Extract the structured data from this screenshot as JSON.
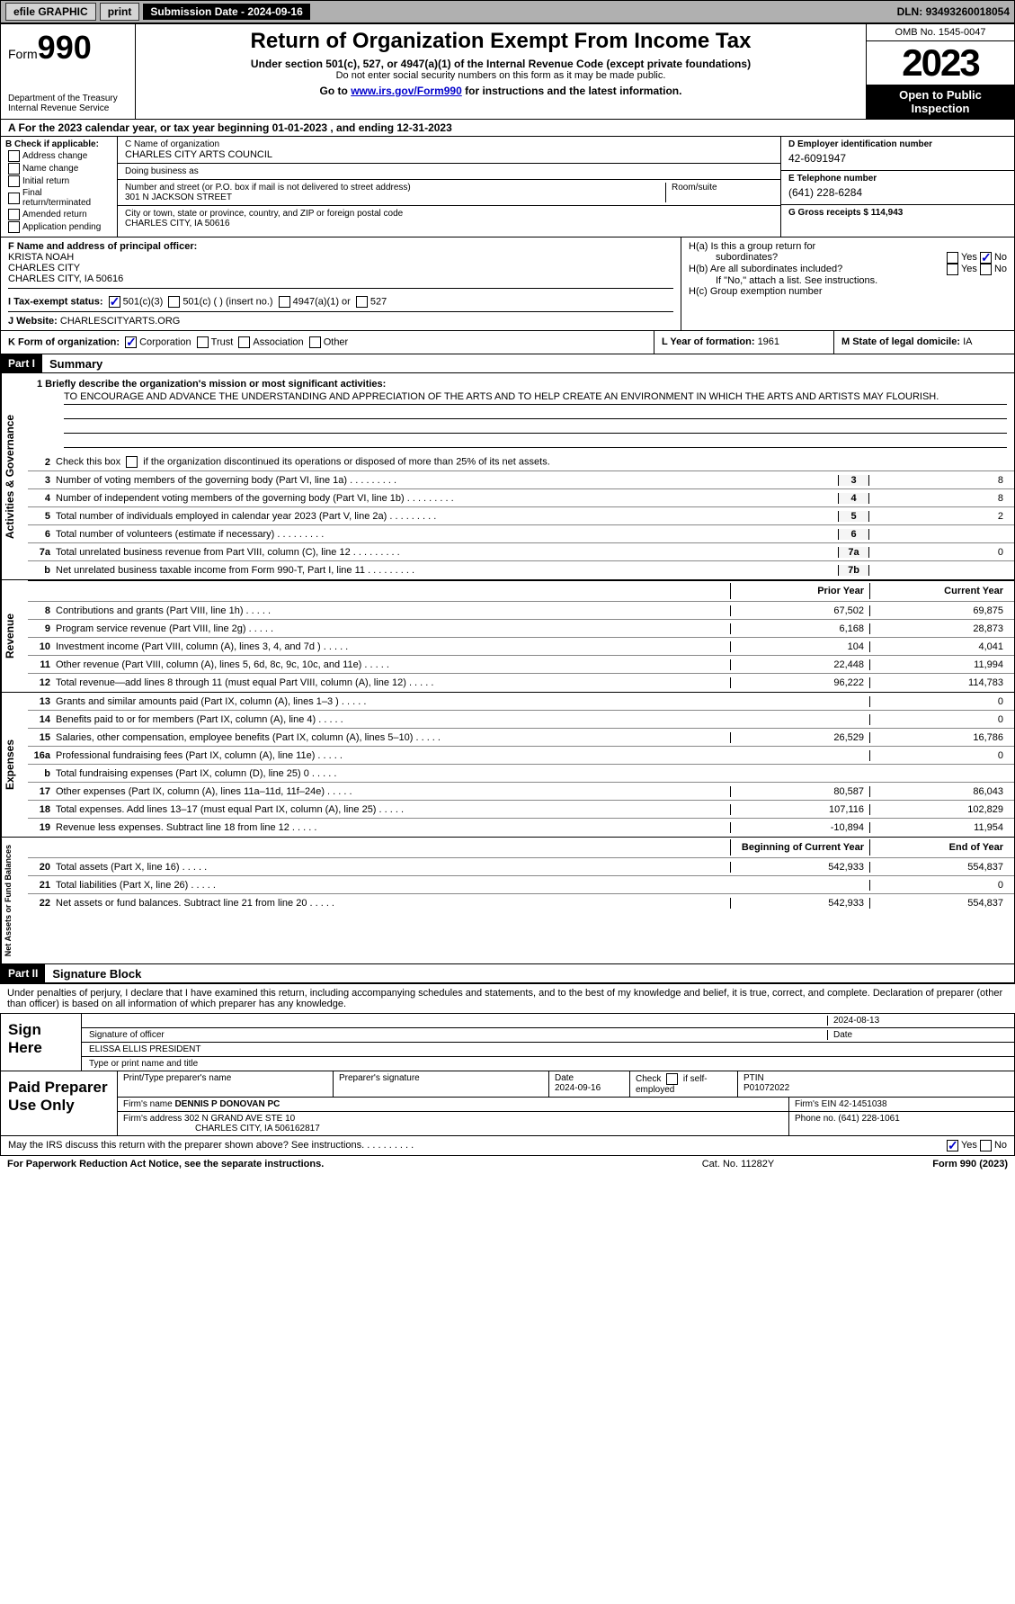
{
  "topbar": {
    "efile": "efile GRAPHIC",
    "print": "print",
    "subdate_label": "Submission Date - ",
    "subdate": "2024-09-16",
    "dln_label": "DLN: ",
    "dln": "93493260018054"
  },
  "header": {
    "form_label": "Form",
    "form_num": "990",
    "dept": "Department of the Treasury",
    "irs": "Internal Revenue Service",
    "title": "Return of Organization Exempt From Income Tax",
    "sub1": "Under section 501(c), 527, or 4947(a)(1) of the Internal Revenue Code (except private foundations)",
    "sub2": "Do not enter social security numbers on this form as it may be made public.",
    "sub3_pre": "Go to ",
    "sub3_link": "www.irs.gov/Form990",
    "sub3_post": " for instructions and the latest information.",
    "omb": "OMB No. 1545-0047",
    "year": "2023",
    "inspect1": "Open to Public",
    "inspect2": "Inspection"
  },
  "lineA": "A   For the 2023 calendar year, or tax year beginning 01-01-2023    , and ending 12-31-2023",
  "boxB": {
    "label": "B Check if applicable:",
    "items": [
      "Address change",
      "Name change",
      "Initial return",
      "Final return/terminated",
      "Amended return",
      "Application pending"
    ]
  },
  "boxC": {
    "name_label": "C Name of organization",
    "name": "CHARLES CITY ARTS COUNCIL",
    "dba_label": "Doing business as",
    "dba": "",
    "street_label": "Number and street (or P.O. box if mail is not delivered to street address)",
    "street": "301 N JACKSON STREET",
    "room_label": "Room/suite",
    "room": "",
    "city_label": "City or town, state or province, country, and ZIP or foreign postal code",
    "city": "CHARLES CITY, IA  50616"
  },
  "boxD": {
    "label": "D Employer identification number",
    "val": "42-6091947"
  },
  "boxE": {
    "label": "E Telephone number",
    "val": "(641) 228-6284"
  },
  "boxG": {
    "label": "G Gross receipts $ ",
    "val": "114,943"
  },
  "boxF": {
    "label": "F  Name and address of principal officer:",
    "name": "KRISTA NOAH",
    "org": "CHARLES CITY",
    "addr": "CHARLES CITY, IA  50616"
  },
  "boxI": {
    "label": "I     Tax-exempt status:",
    "opt1": "501(c)(3)",
    "opt2": "501(c) (  ) (insert no.)",
    "opt3": "4947(a)(1) or",
    "opt4": "527"
  },
  "boxJ": {
    "label": "J     Website: ",
    "val": "CHARLESCITYARTS.ORG"
  },
  "boxH": {
    "a": "H(a)  Is this a group return for",
    "a2": "subordinates?",
    "b": "H(b)  Are all subordinates included?",
    "b2": "If \"No,\" attach a list. See instructions.",
    "c": "H(c)  Group exemption number ",
    "yes": "Yes",
    "no": "No"
  },
  "boxK": {
    "label": "K Form of organization:",
    "opts": [
      "Corporation",
      "Trust",
      "Association",
      "Other"
    ]
  },
  "boxL": {
    "label": "L Year of formation: ",
    "val": "1961"
  },
  "boxM": {
    "label": "M State of legal domicile: ",
    "val": "IA"
  },
  "part1": {
    "hdr": "Part I",
    "title": "Summary"
  },
  "gov": {
    "label": "Activities & Governance",
    "l1_label": "1   Briefly describe the organization's mission or most significant activities:",
    "l1_text": "TO ENCOURAGE AND ADVANCE THE UNDERSTANDING AND APPRECIATION OF THE ARTS AND TO HELP CREATE AN ENVIRONMENT IN WHICH THE ARTS AND ARTISTS MAY FLOURISH.",
    "l2": "Check this box      if the organization discontinued its operations or disposed of more than 25% of its net assets.",
    "lines": [
      {
        "n": "3",
        "t": "Number of voting members of the governing body (Part VI, line 1a)",
        "cn": "3",
        "v": "8"
      },
      {
        "n": "4",
        "t": "Number of independent voting members of the governing body (Part VI, line 1b)",
        "cn": "4",
        "v": "8"
      },
      {
        "n": "5",
        "t": "Total number of individuals employed in calendar year 2023 (Part V, line 2a)",
        "cn": "5",
        "v": "2"
      },
      {
        "n": "6",
        "t": "Total number of volunteers (estimate if necessary)",
        "cn": "6",
        "v": ""
      },
      {
        "n": "7a",
        "t": "Total unrelated business revenue from Part VIII, column (C), line 12",
        "cn": "7a",
        "v": "0"
      },
      {
        "n": "b",
        "t": "Net unrelated business taxable income from Form 990-T, Part I, line 11",
        "cn": "7b",
        "v": ""
      }
    ]
  },
  "rev": {
    "label": "Revenue",
    "hdr1": "Prior Year",
    "hdr2": "Current Year",
    "lines": [
      {
        "n": "8",
        "t": "Contributions and grants (Part VIII, line 1h)",
        "c1": "67,502",
        "c2": "69,875"
      },
      {
        "n": "9",
        "t": "Program service revenue (Part VIII, line 2g)",
        "c1": "6,168",
        "c2": "28,873"
      },
      {
        "n": "10",
        "t": "Investment income (Part VIII, column (A), lines 3, 4, and 7d )",
        "c1": "104",
        "c2": "4,041"
      },
      {
        "n": "11",
        "t": "Other revenue (Part VIII, column (A), lines 5, 6d, 8c, 9c, 10c, and 11e)",
        "c1": "22,448",
        "c2": "11,994"
      },
      {
        "n": "12",
        "t": "Total revenue—add lines 8 through 11 (must equal Part VIII, column (A), line 12)",
        "c1": "96,222",
        "c2": "114,783"
      }
    ]
  },
  "exp": {
    "label": "Expenses",
    "lines": [
      {
        "n": "13",
        "t": "Grants and similar amounts paid (Part IX, column (A), lines 1–3 )",
        "c1": "",
        "c2": "0"
      },
      {
        "n": "14",
        "t": "Benefits paid to or for members (Part IX, column (A), line 4)",
        "c1": "",
        "c2": "0"
      },
      {
        "n": "15",
        "t": "Salaries, other compensation, employee benefits (Part IX, column (A), lines 5–10)",
        "c1": "26,529",
        "c2": "16,786"
      },
      {
        "n": "16a",
        "t": "Professional fundraising fees (Part IX, column (A), line 11e)",
        "c1": "",
        "c2": "0"
      },
      {
        "n": "b",
        "t": "Total fundraising expenses (Part IX, column (D), line 25) 0",
        "c1": "grey",
        "c2": "grey"
      },
      {
        "n": "17",
        "t": "Other expenses (Part IX, column (A), lines 11a–11d, 11f–24e)",
        "c1": "80,587",
        "c2": "86,043"
      },
      {
        "n": "18",
        "t": "Total expenses. Add lines 13–17 (must equal Part IX, column (A), line 25)",
        "c1": "107,116",
        "c2": "102,829"
      },
      {
        "n": "19",
        "t": "Revenue less expenses. Subtract line 18 from line 12",
        "c1": "-10,894",
        "c2": "11,954"
      }
    ]
  },
  "net": {
    "label": "Net Assets or Fund Balances",
    "hdr1": "Beginning of Current Year",
    "hdr2": "End of Year",
    "lines": [
      {
        "n": "20",
        "t": "Total assets (Part X, line 16)",
        "c1": "542,933",
        "c2": "554,837"
      },
      {
        "n": "21",
        "t": "Total liabilities (Part X, line 26)",
        "c1": "",
        "c2": "0"
      },
      {
        "n": "22",
        "t": "Net assets or fund balances. Subtract line 21 from line 20",
        "c1": "542,933",
        "c2": "554,837"
      }
    ]
  },
  "part2": {
    "hdr": "Part II",
    "title": "Signature Block"
  },
  "sigtext": "Under penalties of perjury, I declare that I have examined this return, including accompanying schedules and statements, and to the best of my knowledge and belief, it is true, correct, and complete. Declaration of preparer (other than officer) is based on all information of which preparer has any knowledge.",
  "sign": {
    "label": "Sign Here",
    "sig_label": "Signature of officer",
    "date": "2024-08-13",
    "date_label": "Date",
    "name": "ELISSA ELLIS PRESIDENT",
    "name_label": "Type or print name and title"
  },
  "prep": {
    "label": "Paid Preparer Use Only",
    "h1": "Print/Type preparer's name",
    "h2": "Preparer's signature",
    "h3_label": "Date",
    "h3": "2024-09-16",
    "h4": "Check       if self-employed",
    "h5_label": "PTIN",
    "h5": "P01072022",
    "firm_label": "Firm's name   ",
    "firm": "DENNIS P DONOVAN PC",
    "ein_label": "Firm's EIN  ",
    "ein": "42-1451038",
    "addr_label": "Firm's address ",
    "addr": "302 N GRAND AVE STE 10",
    "addr2": "CHARLES CITY, IA  506162817",
    "phone_label": "Phone no. ",
    "phone": "(641) 228-1061"
  },
  "discuss": {
    "text": "May the IRS discuss this return with the preparer shown above? See instructions.",
    "yes": "Yes",
    "no": "No"
  },
  "footer": {
    "f1": "For Paperwork Reduction Act Notice, see the separate instructions.",
    "f2": "Cat. No. 11282Y",
    "f3_pre": "Form ",
    "f3_b": "990",
    "f3_post": " (2023)"
  }
}
